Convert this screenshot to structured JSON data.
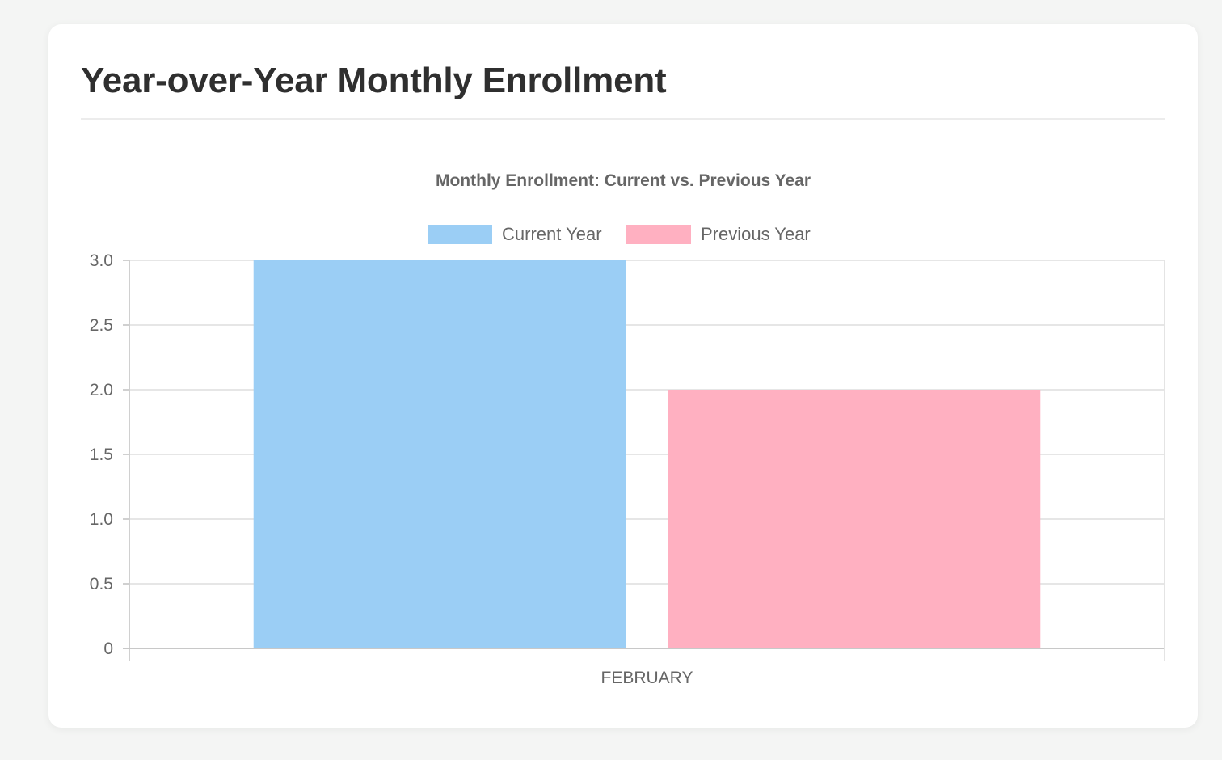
{
  "page": {
    "title": "Year-over-Year Monthly Enrollment"
  },
  "chart_data": {
    "type": "bar",
    "title": "Monthly Enrollment: Current vs. Previous Year",
    "categories": [
      "FEBRUARY"
    ],
    "series": [
      {
        "name": "Current Year",
        "values": [
          3
        ],
        "color": "#9bcef5"
      },
      {
        "name": "Previous Year",
        "values": [
          2
        ],
        "color": "#ffb0c1"
      }
    ],
    "xlabel": "",
    "ylabel": "",
    "ylim": [
      0,
      3
    ],
    "yticks": [
      "0",
      "0.5",
      "1.0",
      "1.5",
      "2.0",
      "2.5",
      "3.0"
    ],
    "grid": true,
    "legend_position": "top-center"
  }
}
